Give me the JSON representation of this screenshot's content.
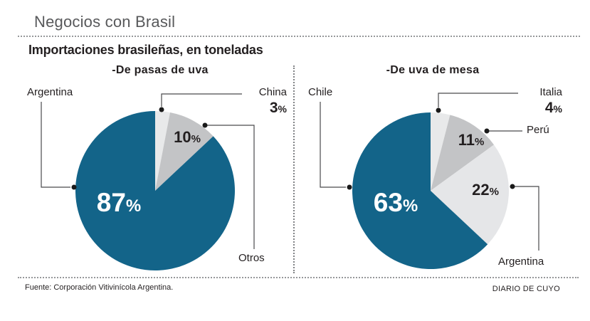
{
  "header": {
    "title": "Negocios con Brasil",
    "subtitle": "Importaciones brasileñas, en toneladas"
  },
  "labels": {
    "percent_sign": "%"
  },
  "colors": {
    "teal": "#136489",
    "gray_medium": "#c3c4c6",
    "gray_light": "#e8e9ea",
    "gray_soft": "#e5e6e8",
    "text_dark": "#231f20",
    "title_gray": "#58595b",
    "dotted_rule": "#96989a"
  },
  "chart_data": [
    {
      "type": "pie",
      "title": "-De pasas de uva",
      "start": "top",
      "direction": "clockwise",
      "slices": [
        {
          "name": "China",
          "value": 3,
          "color": "#e8e9ea"
        },
        {
          "name": "Otros",
          "value": 10,
          "color": "#c3c4c6"
        },
        {
          "name": "Argentina",
          "value": 87,
          "color": "#136489"
        }
      ]
    },
    {
      "type": "pie",
      "title": "-De uva de mesa",
      "start": "top",
      "direction": "clockwise",
      "slices": [
        {
          "name": "Italia",
          "value": 4,
          "color": "#e8e9ea"
        },
        {
          "name": "Perú",
          "value": 11,
          "color": "#c3c4c6"
        },
        {
          "name": "Argentina",
          "value": 22,
          "color": "#e5e6e8"
        },
        {
          "name": "Chile",
          "value": 63,
          "color": "#136489"
        }
      ]
    }
  ],
  "footer": {
    "source": "Fuente: Corporación Vitivinícola Argentina.",
    "credit": "DIARIO DE CUYO"
  }
}
